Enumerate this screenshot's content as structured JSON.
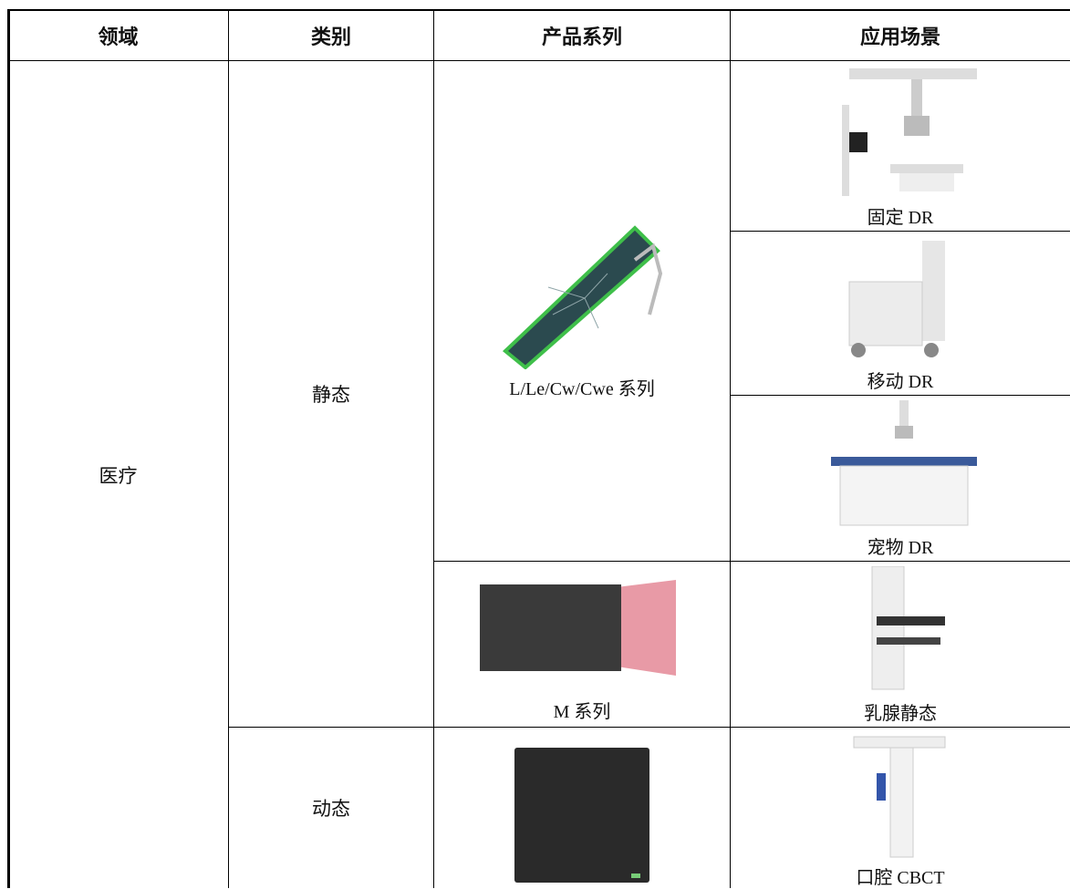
{
  "table": {
    "header": [
      "领域",
      "类别",
      "产品系列",
      "应用场景"
    ],
    "domain": "医疗",
    "categories": [
      {
        "label": "静态",
        "products": [
          {
            "label": "L/Le/Cw/Cwe 系列",
            "scenarios": [
              "固定 DR",
              "移动 DR",
              "宠物 DR"
            ]
          },
          {
            "label": "M 系列",
            "scenarios": [
              "乳腺静态"
            ]
          }
        ]
      },
      {
        "label": "动态",
        "products": [
          {
            "scenarios": [
              "口腔 CBCT"
            ]
          }
        ]
      }
    ]
  }
}
